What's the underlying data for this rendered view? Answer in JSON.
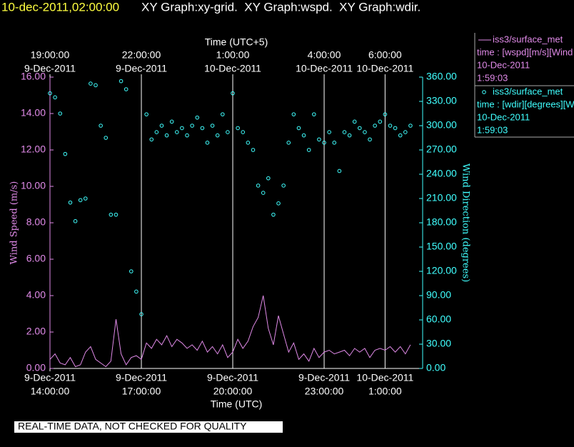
{
  "chart_data": {
    "type": "combo",
    "title_time": "10-dec-2011,02:00:00",
    "title": "XY Graph:xy-grid.  XY Graph:wspd.  XY Graph:wdir.",
    "x_label": "Time (UTC)",
    "x2_label": "Time (UTC+5)",
    "y_label": "Wind Speed (m/s)",
    "y2_label": "Wind Direction (degrees)",
    "note": "REAL-TIME DATA, NOT CHECKED FOR QUALITY",
    "grid": true,
    "xlim": [
      "2011-12-09T14:00",
      "2011-12-10T02:14"
    ],
    "xticks": [
      {
        "value": "2011-12-09T14:00",
        "label": [
          "9-Dec-2011",
          "14:00:00"
        ]
      },
      {
        "value": "2011-12-09T17:00",
        "label": [
          "9-Dec-2011",
          "17:00:00"
        ]
      },
      {
        "value": "2011-12-09T20:00",
        "label": [
          "9-Dec-2011",
          "20:00:00"
        ]
      },
      {
        "value": "2011-12-09T23:00",
        "label": [
          "9-Dec-2011",
          "23:00:00"
        ]
      },
      {
        "value": "2011-12-10T01:00",
        "label": [
          "10-Dec-2011",
          "1:00:00"
        ]
      }
    ],
    "x2lim": [
      "2011-12-09T19:00",
      "2011-12-10T07:14"
    ],
    "x2ticks": [
      {
        "value": "2011-12-09T19:00",
        "label": [
          "19:00:00",
          "9-Dec-2011"
        ]
      },
      {
        "value": "2011-12-09T22:00",
        "label": [
          "22:00:00",
          "9-Dec-2011"
        ]
      },
      {
        "value": "2011-12-10T01:00",
        "label": [
          "1:00:00",
          "10-Dec-2011"
        ]
      },
      {
        "value": "2011-12-10T04:00",
        "label": [
          "4:00:00",
          "10-Dec-2011"
        ]
      },
      {
        "value": "2011-12-10T06:00",
        "label": [
          "6:00:00",
          "10-Dec-2011"
        ]
      }
    ],
    "ylim": [
      0,
      16
    ],
    "yticks": [
      {
        "value": 0,
        "label": "0.00"
      },
      {
        "value": 2,
        "label": "2.00"
      },
      {
        "value": 4,
        "label": "4.00"
      },
      {
        "value": 6,
        "label": "6.00"
      },
      {
        "value": 8,
        "label": "8.00"
      },
      {
        "value": 10,
        "label": "10.00"
      },
      {
        "value": 12,
        "label": "12.00"
      },
      {
        "value": 14,
        "label": "14.00"
      },
      {
        "value": 16,
        "label": "16.00"
      }
    ],
    "y2lim": [
      0,
      360
    ],
    "y2ticks": [
      {
        "value": 0,
        "label": "0.00"
      },
      {
        "value": 30,
        "label": "30.00"
      },
      {
        "value": 60,
        "label": "60.00"
      },
      {
        "value": 90,
        "label": "90.00"
      },
      {
        "value": 120,
        "label": "120.00"
      },
      {
        "value": 150,
        "label": "150.00"
      },
      {
        "value": 180,
        "label": "180.00"
      },
      {
        "value": 210,
        "label": "210.00"
      },
      {
        "value": 240,
        "label": "240.00"
      },
      {
        "value": 270,
        "label": "270.00"
      },
      {
        "value": 300,
        "label": "300.00"
      },
      {
        "value": 330,
        "label": "330.00"
      },
      {
        "value": 360,
        "label": "360.00"
      }
    ],
    "x": [
      "2011-12-09T14:00",
      "2011-12-09T14:10",
      "2011-12-09T14:20",
      "2011-12-09T14:30",
      "2011-12-09T14:40",
      "2011-12-09T14:50",
      "2011-12-09T15:00",
      "2011-12-09T15:10",
      "2011-12-09T15:20",
      "2011-12-09T15:30",
      "2011-12-09T15:40",
      "2011-12-09T15:50",
      "2011-12-09T16:00",
      "2011-12-09T16:10",
      "2011-12-09T16:20",
      "2011-12-09T16:30",
      "2011-12-09T16:40",
      "2011-12-09T16:50",
      "2011-12-09T17:00",
      "2011-12-09T17:10",
      "2011-12-09T17:20",
      "2011-12-09T17:30",
      "2011-12-09T17:40",
      "2011-12-09T17:50",
      "2011-12-09T18:00",
      "2011-12-09T18:10",
      "2011-12-09T18:20",
      "2011-12-09T18:30",
      "2011-12-09T18:40",
      "2011-12-09T18:50",
      "2011-12-09T19:00",
      "2011-12-09T19:10",
      "2011-12-09T19:20",
      "2011-12-09T19:30",
      "2011-12-09T19:40",
      "2011-12-09T19:50",
      "2011-12-09T20:00",
      "2011-12-09T20:10",
      "2011-12-09T20:20",
      "2011-12-09T20:30",
      "2011-12-09T20:40",
      "2011-12-09T20:50",
      "2011-12-09T21:00",
      "2011-12-09T21:10",
      "2011-12-09T21:20",
      "2011-12-09T21:30",
      "2011-12-09T21:40",
      "2011-12-09T21:50",
      "2011-12-09T22:00",
      "2011-12-09T22:10",
      "2011-12-09T22:20",
      "2011-12-09T22:30",
      "2011-12-09T22:40",
      "2011-12-09T22:50",
      "2011-12-09T23:00",
      "2011-12-09T23:10",
      "2011-12-09T23:20",
      "2011-12-09T23:30",
      "2011-12-09T23:40",
      "2011-12-09T23:50",
      "2011-12-10T00:00",
      "2011-12-10T00:10",
      "2011-12-10T00:20",
      "2011-12-10T00:30",
      "2011-12-10T00:40",
      "2011-12-10T00:50",
      "2011-12-10T01:00",
      "2011-12-10T01:10",
      "2011-12-10T01:20",
      "2011-12-10T01:30",
      "2011-12-10T01:40",
      "2011-12-10T01:50"
    ],
    "series": [
      {
        "name": "iss3/surface_met",
        "type": "line",
        "color": "#e08ae8",
        "axis": "y",
        "legend_lines": [
          "time : [wspd][m/s][Wind",
          "10-Dec-2011",
          "1:59:03"
        ],
        "values": [
          0.5,
          0.8,
          0.3,
          0.2,
          0.6,
          0.1,
          0.2,
          0.9,
          1.2,
          0.5,
          0.3,
          0.1,
          0.4,
          2.7,
          0.8,
          0.2,
          0.6,
          0.7,
          0.5,
          1.4,
          1.1,
          1.6,
          1.3,
          1.8,
          1.2,
          1.6,
          1.4,
          1.1,
          1.3,
          1.0,
          1.5,
          0.9,
          1.2,
          0.8,
          1.3,
          0.6,
          0.9,
          1.6,
          1.1,
          1.5,
          2.3,
          2.8,
          4.0,
          2.2,
          1.3,
          2.9,
          1.9,
          0.9,
          1.4,
          0.5,
          0.8,
          0.4,
          1.1,
          0.6,
          0.9,
          1.0,
          0.8,
          0.9,
          1.0,
          0.7,
          1.1,
          0.9,
          1.1,
          0.6,
          1.0,
          1.1,
          1.0,
          1.2,
          0.9,
          1.2,
          0.8,
          1.3
        ]
      },
      {
        "name": "iss3/surface_met",
        "type": "scatter",
        "color": "#40ffff",
        "axis": "y2",
        "legend_lines": [
          "time : [wdir][degrees][W",
          "10-Dec-2011",
          "1:59:03"
        ],
        "values": [
          340,
          335,
          315,
          265,
          205,
          182,
          208,
          210,
          352,
          350,
          300,
          285,
          190,
          190,
          355,
          345,
          120,
          95,
          67,
          314,
          283,
          292,
          300,
          288,
          305,
          292,
          297,
          288,
          300,
          310,
          297,
          279,
          300,
          288,
          314,
          292,
          340,
          297,
          292,
          279,
          270,
          226,
          217,
          235,
          190,
          204,
          226,
          279,
          314,
          297,
          288,
          270,
          314,
          283,
          279,
          292,
          279,
          244,
          292,
          288,
          305,
          297,
          292,
          283,
          300,
          305,
          314,
          300,
          297,
          288,
          292,
          300
        ]
      }
    ]
  }
}
